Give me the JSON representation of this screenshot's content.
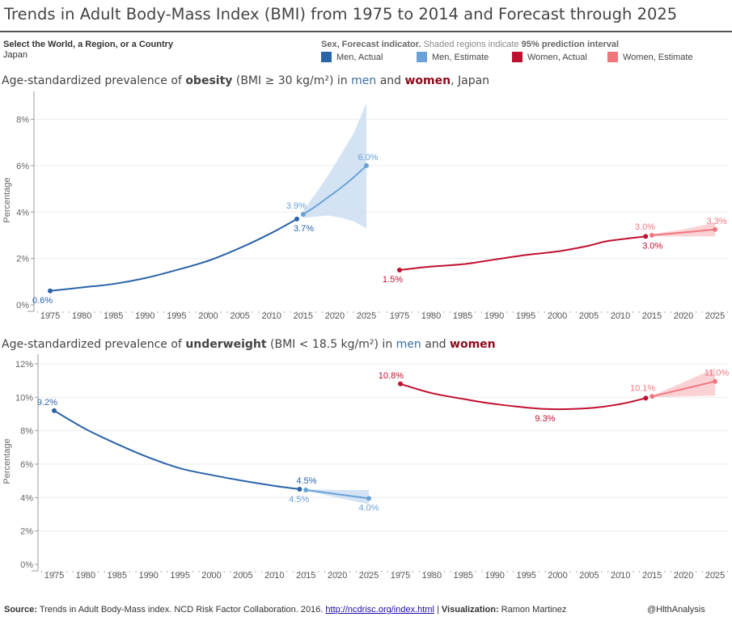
{
  "header": {
    "title": "Trends in Adult Body-Mass Index (BMI) from 1975 to 2014 and Forecast through 2025"
  },
  "filter": {
    "label": "Select the World, a Region, or a Country",
    "value": "Japan"
  },
  "legend": {
    "title_bold": "Sex, Forecast indicator.",
    "title_rest": " Shaded regions indicate ",
    "title_bold2": "95% prediction interval",
    "items": [
      {
        "label": "Men, Actual",
        "color": "#2b63a8"
      },
      {
        "label": "Men, Estimate",
        "color": "#6aa2d8"
      },
      {
        "label": "Women, Actual",
        "color": "#c0102f"
      },
      {
        "label": "Women, Estimate",
        "color": "#f0767e"
      }
    ]
  },
  "colors": {
    "men_actual": "#2b63a8",
    "men_estimate": "#6aa2d8",
    "men_band": "#cfe0f2",
    "women_actual": "#c0102f",
    "women_estimate": "#f0767e",
    "women_band": "#f9cdd0"
  },
  "footer": {
    "source_label": "Source:",
    "source_text": " Trends in Adult Body-Mass index. NCD Risk Factor Collaboration. 2016. ",
    "source_link": "http://ncdrisc.org/index.html",
    "sep": " | ",
    "viz_label": "Visualization:",
    "viz_name": " Ramon Martinez",
    "handle": "@HlthAnalysis"
  },
  "chart_data": [
    {
      "type": "line",
      "id": "obesity",
      "title_parts": {
        "pre": "Age-standardized prevalence of ",
        "bold": "obesity",
        "mid": " (BMI ≥ 30 kg/m²) in ",
        "men": "men",
        "and": " and ",
        "women": "women",
        "post": ", Japan"
      },
      "ylabel": "Percentage",
      "ylim": [
        0,
        9
      ],
      "yticks": [
        0,
        2,
        4,
        6,
        8
      ],
      "ytick_labels": [
        "0%",
        "2%",
        "4%",
        "6%",
        "8%"
      ],
      "xticks": [
        1975,
        1980,
        1985,
        1990,
        1995,
        2000,
        2005,
        2010,
        2015,
        2020,
        2025
      ],
      "xlim": [
        1975,
        2025
      ],
      "grid": true,
      "panels": [
        {
          "name": "Men",
          "series": [
            {
              "name": "Men, Actual",
              "color_key": "men_actual",
              "x": [
                1975,
                1980,
                1985,
                1990,
                1995,
                2000,
                2005,
                2010,
                2014
              ],
              "y": [
                0.6,
                0.75,
                0.9,
                1.15,
                1.5,
                1.9,
                2.45,
                3.1,
                3.7
              ]
            },
            {
              "name": "Men, Estimate",
              "color_key": "men_estimate",
              "x": [
                2015,
                2017,
                2019,
                2021,
                2023,
                2025
              ],
              "y": [
                3.9,
                4.25,
                4.65,
                5.05,
                5.5,
                6.0
              ],
              "band_low": [
                3.75,
                3.8,
                3.85,
                3.75,
                3.6,
                3.3
              ],
              "band_high": [
                4.05,
                4.8,
                5.6,
                6.5,
                7.4,
                8.7
              ]
            }
          ],
          "labels": [
            {
              "x": 1975,
              "y": 0.6,
              "text": "0.6%",
              "series": "men_actual",
              "pos": "below"
            },
            {
              "x": 2014,
              "y": 3.7,
              "text": "3.7%",
              "series": "men_actual",
              "pos": "below-right"
            },
            {
              "x": 2015,
              "y": 3.9,
              "text": "3.9%",
              "series": "men_estimate",
              "pos": "above-left"
            },
            {
              "x": 2025,
              "y": 6.0,
              "text": "6.0%",
              "series": "men_estimate",
              "pos": "above"
            }
          ]
        },
        {
          "name": "Women",
          "series": [
            {
              "name": "Women, Actual",
              "color_key": "women_actual",
              "x": [
                1975,
                1980,
                1985,
                1990,
                1995,
                2000,
                2005,
                2008,
                2014
              ],
              "y": [
                1.5,
                1.65,
                1.75,
                1.95,
                2.15,
                2.3,
                2.55,
                2.75,
                2.95
              ]
            },
            {
              "name": "Women, Estimate",
              "color_key": "women_estimate",
              "x": [
                2015,
                2020,
                2025
              ],
              "y": [
                3.0,
                3.12,
                3.25
              ],
              "band_low": [
                2.95,
                2.95,
                2.95
              ],
              "band_high": [
                3.05,
                3.25,
                3.55
              ]
            }
          ],
          "labels": [
            {
              "x": 1975,
              "y": 1.5,
              "text": "1.5%",
              "series": "women_actual",
              "pos": "below-left"
            },
            {
              "x": 2014,
              "y": 2.95,
              "text": "3.0%",
              "series": "women_actual",
              "pos": "below-right"
            },
            {
              "x": 2015,
              "y": 3.0,
              "text": "3.0%",
              "series": "women_estimate",
              "pos": "above-left"
            },
            {
              "x": 2025,
              "y": 3.25,
              "text": "3.3%",
              "series": "women_estimate",
              "pos": "above"
            }
          ]
        }
      ]
    },
    {
      "type": "line",
      "id": "underweight",
      "title_parts": {
        "pre": "Age-standardized prevalence of ",
        "bold": "underweight",
        "mid": " (BMI < 18.5 kg/m²) in ",
        "men": "men",
        "and": " and ",
        "women": "women",
        "post": ""
      },
      "ylabel": "Percentage",
      "ylim": [
        0,
        12
      ],
      "yticks": [
        0,
        2,
        4,
        6,
        8,
        10,
        12
      ],
      "ytick_labels": [
        "0%",
        "2%",
        "4%",
        "6%",
        "8%",
        "10%",
        "12%"
      ],
      "xticks": [
        1975,
        1980,
        1985,
        1990,
        1995,
        2000,
        2005,
        2010,
        2015,
        2020,
        2025
      ],
      "xlim": [
        1975,
        2025
      ],
      "grid": true,
      "panels": [
        {
          "name": "Men",
          "series": [
            {
              "name": "Men, Actual",
              "color_key": "men_actual",
              "x": [
                1975,
                1980,
                1985,
                1990,
                1995,
                2000,
                2005,
                2010,
                2014
              ],
              "y": [
                9.2,
                8.1,
                7.2,
                6.4,
                5.75,
                5.35,
                5.0,
                4.7,
                4.5
              ]
            },
            {
              "name": "Men, Estimate",
              "color_key": "men_estimate",
              "x": [
                2015,
                2020,
                2025
              ],
              "y": [
                4.45,
                4.2,
                3.95
              ],
              "band_low": [
                4.4,
                4.0,
                3.6
              ],
              "band_high": [
                4.5,
                4.45,
                4.45
              ]
            }
          ],
          "labels": [
            {
              "x": 1975,
              "y": 9.2,
              "text": "9.2%",
              "series": "men_actual",
              "pos": "above-left"
            },
            {
              "x": 2014,
              "y": 4.5,
              "text": "4.5%",
              "series": "men_actual",
              "pos": "above-right"
            },
            {
              "x": 2015,
              "y": 4.45,
              "text": "4.5%",
              "series": "men_estimate",
              "pos": "below-left"
            },
            {
              "x": 2025,
              "y": 3.95,
              "text": "4.0%",
              "series": "men_estimate",
              "pos": "below"
            }
          ]
        },
        {
          "name": "Women",
          "series": [
            {
              "name": "Women, Actual",
              "color_key": "women_actual",
              "x": [
                1975,
                1980,
                1985,
                1990,
                1998,
                2005,
                2010,
                2014
              ],
              "y": [
                10.8,
                10.25,
                9.9,
                9.6,
                9.3,
                9.35,
                9.6,
                9.95
              ]
            },
            {
              "name": "Women, Estimate",
              "color_key": "women_estimate",
              "x": [
                2015,
                2020,
                2025
              ],
              "y": [
                10.05,
                10.5,
                10.95
              ],
              "band_low": [
                10.0,
                10.05,
                10.1
              ],
              "band_high": [
                10.1,
                10.9,
                11.75
              ]
            }
          ],
          "labels": [
            {
              "x": 1975,
              "y": 10.8,
              "text": "10.8%",
              "series": "women_actual",
              "pos": "above-left"
            },
            {
              "x": 1998,
              "y": 9.3,
              "text": "9.3%",
              "series": "women_actual",
              "pos": "below"
            },
            {
              "x": 2015,
              "y": 10.05,
              "text": "10.1%",
              "series": "women_estimate",
              "pos": "above-left"
            },
            {
              "x": 2025,
              "y": 10.95,
              "text": "11.0%",
              "series": "women_estimate",
              "pos": "above"
            }
          ]
        }
      ]
    }
  ]
}
